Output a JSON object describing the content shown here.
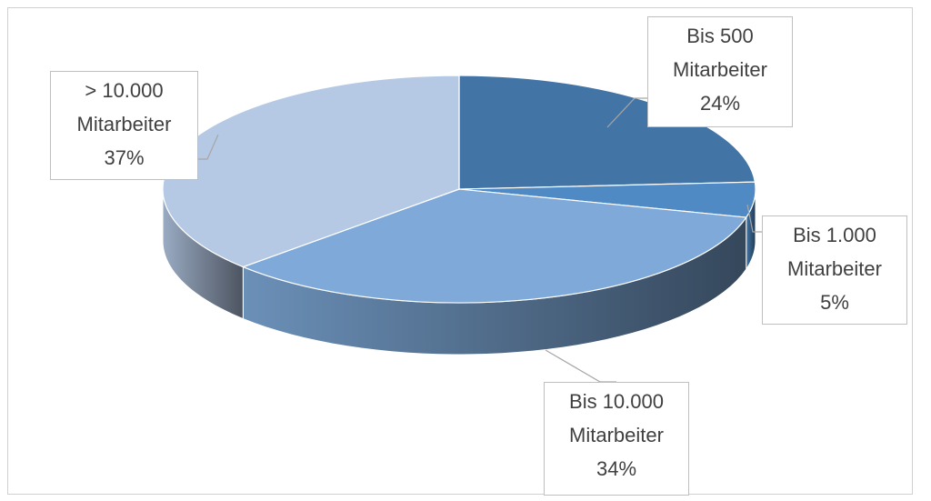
{
  "chart_data": {
    "type": "pie",
    "categories": [
      "Bis 500 Mitarbeiter",
      "Bis 1.000 Mitarbeiter",
      "Bis 10.000 Mitarbeiter",
      "> 10.000 Mitarbeiter"
    ],
    "values": [
      24,
      5,
      34,
      37
    ],
    "value_labels": [
      "24%",
      "5%",
      "34%",
      "37%"
    ],
    "colors": [
      "#4274a6",
      "#4f8ac5",
      "#7ea9d8",
      "#b5c9e5"
    ]
  }
}
